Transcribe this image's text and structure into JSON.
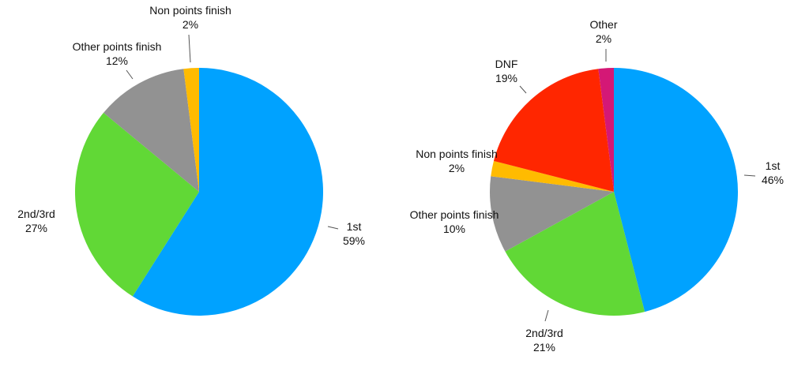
{
  "chart_data": [
    {
      "type": "pie",
      "title": "",
      "slices": [
        {
          "label": "1st",
          "value": 59,
          "pct_label": "59%",
          "color": "#00A2FF"
        },
        {
          "label": "2nd/3rd",
          "value": 27,
          "pct_label": "27%",
          "color": "#61D836"
        },
        {
          "label": "Other points finish",
          "value": 12,
          "pct_label": "12%",
          "color": "#929292"
        },
        {
          "label": "Non points finish",
          "value": 2,
          "pct_label": "2%",
          "color": "#FFBB00"
        }
      ]
    },
    {
      "type": "pie",
      "title": "",
      "slices": [
        {
          "label": "1st",
          "value": 46,
          "pct_label": "46%",
          "color": "#00A2FF"
        },
        {
          "label": "2nd/3rd",
          "value": 21,
          "pct_label": "21%",
          "color": "#61D836"
        },
        {
          "label": "Other points finish",
          "value": 10,
          "pct_label": "10%",
          "color": "#929292"
        },
        {
          "label": "Non points finish",
          "value": 2,
          "pct_label": "2%",
          "color": "#FFBB00"
        },
        {
          "label": "DNF",
          "value": 19,
          "pct_label": "19%",
          "color": "#FF2600"
        },
        {
          "label": "Other",
          "value": 2,
          "pct_label": "2%",
          "color": "#D41876"
        }
      ]
    }
  ]
}
